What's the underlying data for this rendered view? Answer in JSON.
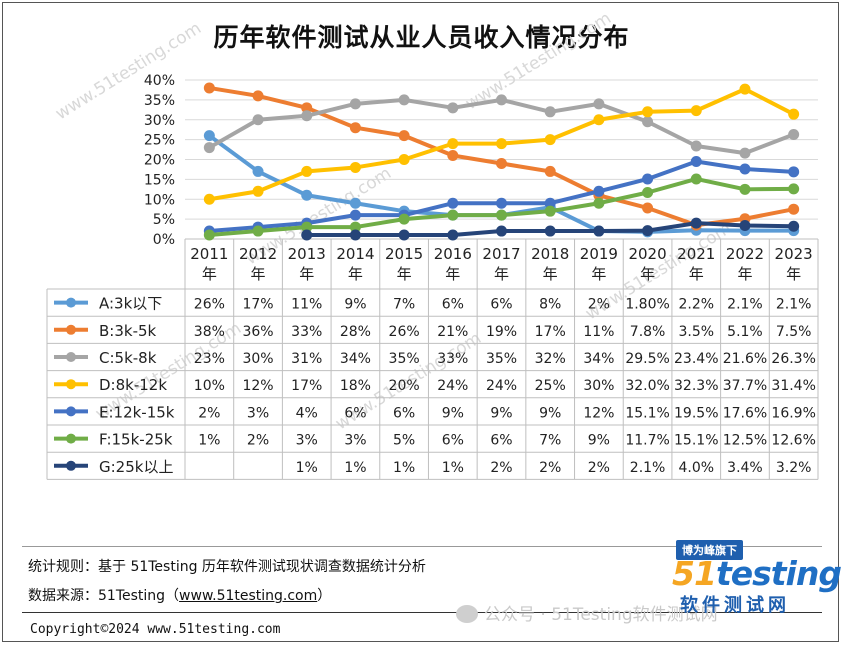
{
  "chart_data": {
    "type": "line",
    "title": "历年软件测试从业人员收入情况分布",
    "xlabel": "",
    "ylabel": "",
    "ylim": [
      0,
      40
    ],
    "ytick_labels": [
      "0%",
      "5%",
      "10%",
      "15%",
      "20%",
      "25%",
      "30%",
      "35%",
      "40%"
    ],
    "grid": true,
    "legend": "data-table",
    "categories": [
      "2011\n年",
      "2012\n年",
      "2013\n年",
      "2014\n年",
      "2015\n年",
      "2016\n年",
      "2017\n年",
      "2018\n年",
      "2019\n年",
      "2020\n年",
      "2021\n年",
      "2022\n年",
      "2023\n年"
    ],
    "series": [
      {
        "name": "A:3k以下",
        "color": "#5b9bd5",
        "values": [
          26,
          17,
          11,
          9,
          7,
          6,
          6,
          8,
          2,
          1.8,
          2.2,
          2.1,
          2.1
        ],
        "labels": [
          "26%",
          "17%",
          "11%",
          "9%",
          "7%",
          "6%",
          "6%",
          "8%",
          "2%",
          "1.80%",
          "2.2%",
          "2.1%",
          "2.1%"
        ]
      },
      {
        "name": "B:3k-5k",
        "color": "#ed7d31",
        "values": [
          38,
          36,
          33,
          28,
          26,
          21,
          19,
          17,
          11,
          7.8,
          3.5,
          5.1,
          7.5
        ],
        "labels": [
          "38%",
          "36%",
          "33%",
          "28%",
          "26%",
          "21%",
          "19%",
          "17%",
          "11%",
          "7.8%",
          "3.5%",
          "5.1%",
          "7.5%"
        ]
      },
      {
        "name": "C:5k-8k",
        "color": "#a5a5a5",
        "values": [
          23,
          30,
          31,
          34,
          35,
          33,
          35,
          32,
          34,
          29.5,
          23.4,
          21.6,
          26.3
        ],
        "labels": [
          "23%",
          "30%",
          "31%",
          "34%",
          "35%",
          "33%",
          "35%",
          "32%",
          "34%",
          "29.5%",
          "23.4%",
          "21.6%",
          "26.3%"
        ]
      },
      {
        "name": "D:8k-12k",
        "color": "#ffc000",
        "values": [
          10,
          12,
          17,
          18,
          20,
          24,
          24,
          25,
          30,
          32.0,
          32.3,
          37.7,
          31.4
        ],
        "labels": [
          "10%",
          "12%",
          "17%",
          "18%",
          "20%",
          "24%",
          "24%",
          "25%",
          "30%",
          "32.0%",
          "32.3%",
          "37.7%",
          "31.4%"
        ]
      },
      {
        "name": "E:12k-15k",
        "color": "#4472c4",
        "values": [
          2,
          3,
          4,
          6,
          6,
          9,
          9,
          9,
          12,
          15.1,
          19.5,
          17.6,
          16.9
        ],
        "labels": [
          "2%",
          "3%",
          "4%",
          "6%",
          "6%",
          "9%",
          "9%",
          "9%",
          "12%",
          "15.1%",
          "19.5%",
          "17.6%",
          "16.9%"
        ]
      },
      {
        "name": "F:15k-25k",
        "color": "#70ad47",
        "values": [
          1,
          2,
          3,
          3,
          5,
          6,
          6,
          7,
          9,
          11.7,
          15.1,
          12.5,
          12.6
        ],
        "labels": [
          "1%",
          "2%",
          "3%",
          "3%",
          "5%",
          "6%",
          "6%",
          "7%",
          "9%",
          "11.7%",
          "15.1%",
          "12.5%",
          "12.6%"
        ]
      },
      {
        "name": "G:25k以上",
        "color": "#264478",
        "values": [
          null,
          null,
          1,
          1,
          1,
          1,
          2,
          2,
          2,
          2.1,
          4.0,
          3.4,
          3.2
        ],
        "labels": [
          "",
          "",
          "1%",
          "1%",
          "1%",
          "1%",
          "2%",
          "2%",
          "2%",
          "2.1%",
          "4.0%",
          "3.4%",
          "3.2%"
        ]
      }
    ]
  },
  "watermarks": [
    "www.51testing.com",
    "www.51testing.com",
    "www.51testing.com",
    "www.51testing.com",
    "www.51testing.com",
    "www.51testing.com"
  ],
  "footer": {
    "rule_text": "统计规则：基于 51Testing 历年软件测试现状调查数据统计分析",
    "source_prefix": "数据来源：51Testing（",
    "source_link": "www.51testing.com",
    "source_suffix": "）",
    "copyright": "Copyright©2024 www.51testing.com",
    "wechat": "公众号 · 51Testing软件测试网"
  },
  "logo": {
    "tag": "博为峰旗下",
    "main_a": "51",
    "main_b": "testing",
    "sub": "软件测试网"
  }
}
